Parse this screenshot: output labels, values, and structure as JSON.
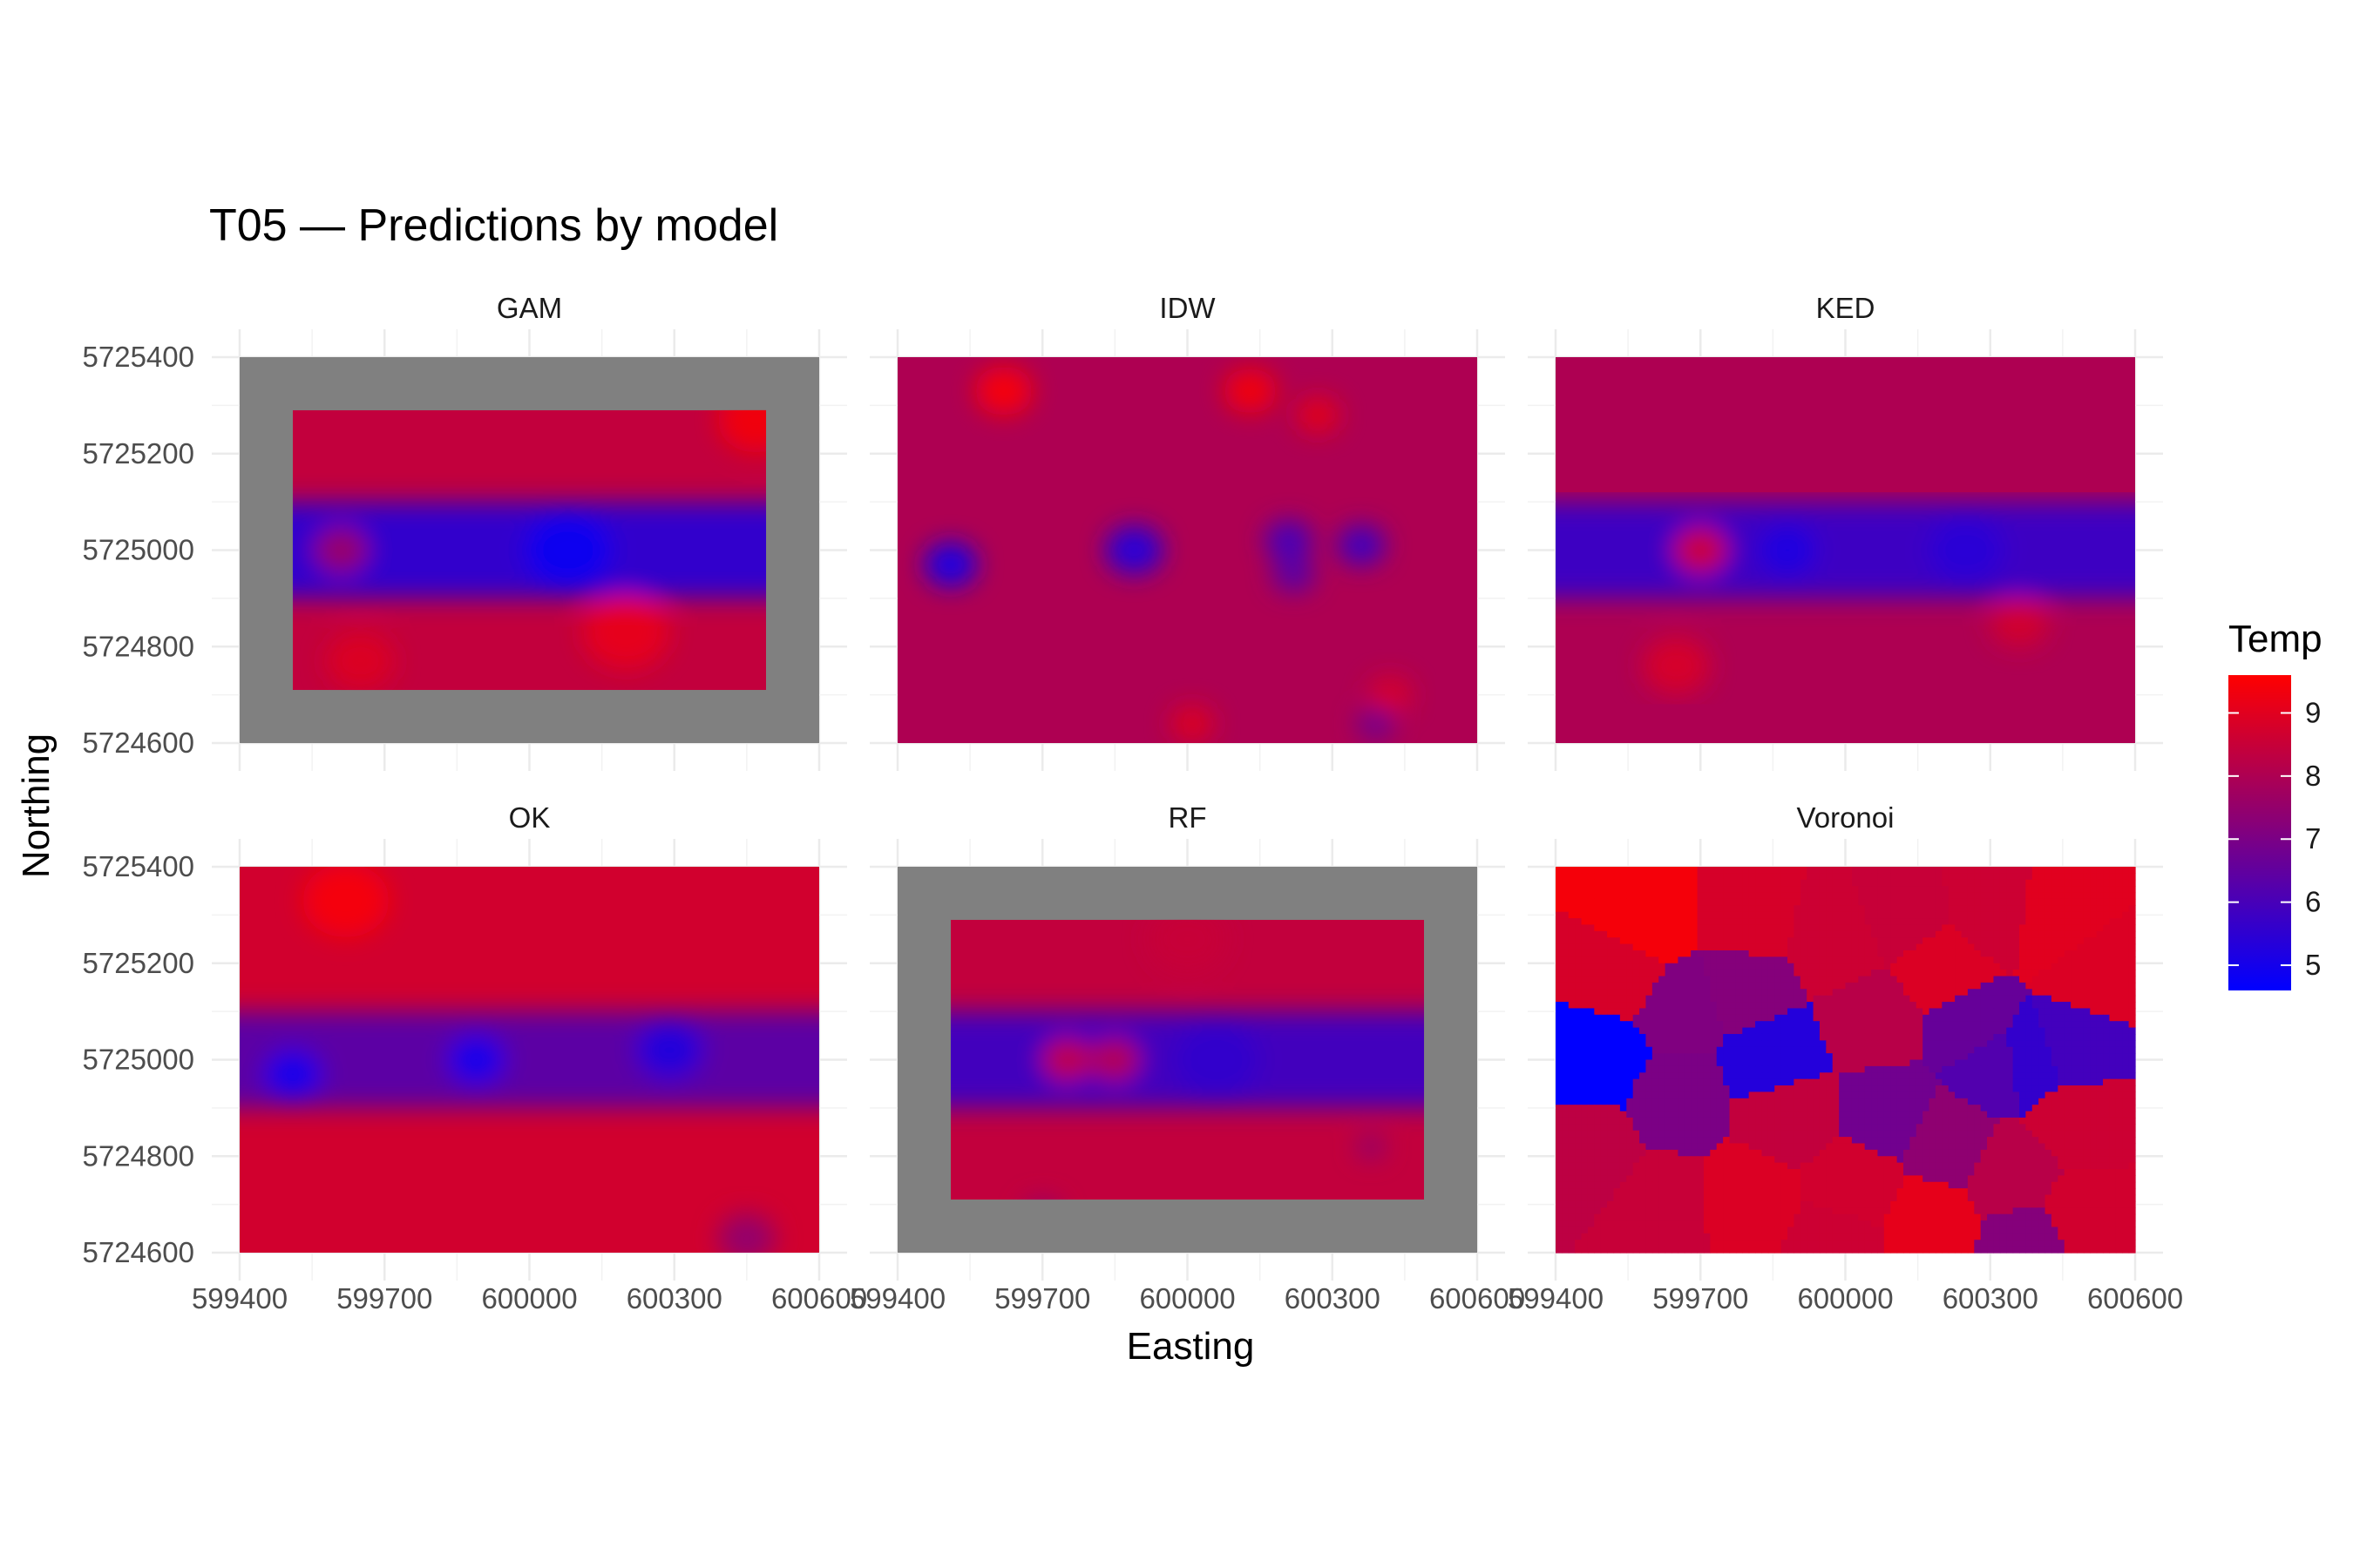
{
  "chart_data": {
    "type": "heatmap",
    "title": "T05 — Predictions by model",
    "xlabel": "Easting",
    "ylabel": "Northing",
    "xlim": [
      599400,
      600600
    ],
    "ylim": [
      5724600,
      5725400
    ],
    "x_ticks": [
      "599400",
      "599700",
      "600000",
      "600300",
      "600600"
    ],
    "y_ticks": [
      "5724600",
      "5724800",
      "5725000",
      "5725200",
      "5725400"
    ],
    "x_tick_values": [
      599400,
      599700,
      600000,
      600300,
      600600
    ],
    "y_tick_values": [
      5724600,
      5724800,
      5725000,
      5725200,
      5725400
    ],
    "legend": {
      "title": "Temp",
      "placement": "right",
      "ticks": [
        "5",
        "6",
        "7",
        "8",
        "9"
      ],
      "tick_values": [
        5,
        6,
        7,
        8,
        9
      ],
      "range": [
        4.6,
        9.6
      ],
      "low_color": "#0000ff",
      "mid_color": "#800080",
      "high_color": "#ff0000"
    },
    "na_color": "#808080",
    "panels": [
      {
        "name": "GAM",
        "extent": [
          599510,
          600490,
          5724710,
          5725290
        ],
        "base": 8.4,
        "band": {
          "y": 5725000,
          "half_width": 100,
          "value": 5.6
        },
        "blobs": [
          [
            599610,
            5725000,
            55,
            7.6
          ],
          [
            600080,
            5725000,
            90,
            4.9
          ],
          [
            600200,
            5724830,
            90,
            9.1
          ],
          [
            599650,
            5724770,
            70,
            8.9
          ],
          [
            600470,
            5725270,
            80,
            9.3
          ]
        ]
      },
      {
        "name": "IDW",
        "extent": [
          599400,
          600600,
          5724600,
          5725400
        ],
        "base": 8.0,
        "blobs": [
          [
            599510,
            5724970,
            55,
            5.2
          ],
          [
            599890,
            5725000,
            60,
            5.4
          ],
          [
            600360,
            5725010,
            50,
            5.9
          ],
          [
            600210,
            5725020,
            50,
            6.0
          ],
          [
            600220,
            5724950,
            45,
            6.4
          ],
          [
            599620,
            5725330,
            60,
            9.4
          ],
          [
            600130,
            5725330,
            55,
            9.3
          ],
          [
            600270,
            5725280,
            45,
            9.0
          ],
          [
            600010,
            5724640,
            45,
            8.9
          ],
          [
            600420,
            5724700,
            45,
            8.8
          ],
          [
            600390,
            5724640,
            40,
            6.8
          ]
        ]
      },
      {
        "name": "KED",
        "extent": [
          599400,
          600600,
          5724600,
          5725400
        ],
        "base": 8.0,
        "inner": [
          599510,
          600490,
          5724710,
          5725290
        ],
        "band": {
          "y": 5725000,
          "half_width": 100,
          "value": 5.8
        },
        "blobs": [
          [
            599700,
            5725000,
            55,
            8.6
          ],
          [
            599880,
            5725000,
            60,
            5.2
          ],
          [
            600250,
            5725000,
            80,
            5.4
          ],
          [
            599650,
            5724760,
            70,
            8.8
          ],
          [
            600360,
            5724850,
            60,
            8.7
          ]
        ]
      },
      {
        "name": "OK",
        "extent": [
          599400,
          600600,
          5724600,
          5725400
        ],
        "base": 8.7,
        "band": {
          "y": 5725000,
          "half_width": 100,
          "value": 6.4
        },
        "blobs": [
          [
            599510,
            5724970,
            60,
            5.0
          ],
          [
            599890,
            5725000,
            60,
            5.0
          ],
          [
            600290,
            5725020,
            70,
            5.3
          ],
          [
            599620,
            5725330,
            90,
            9.4
          ],
          [
            600450,
            5724630,
            60,
            7.5
          ]
        ]
      },
      {
        "name": "RF",
        "extent": [
          599510,
          600490,
          5724710,
          5725290
        ],
        "base": 8.4,
        "band": {
          "y": 5725000,
          "half_width": 100,
          "value": 5.9
        },
        "blobs": [
          [
            599750,
            5725000,
            50,
            8.4
          ],
          [
            599850,
            5725000,
            50,
            8.2
          ],
          [
            600060,
            5725000,
            90,
            5.6
          ],
          [
            600000,
            5725250,
            80,
            8.5
          ],
          [
            599700,
            5724680,
            40,
            7.6
          ],
          [
            600380,
            5724820,
            30,
            7.4
          ]
        ]
      },
      {
        "name": "Voronoi",
        "extent": [
          599400,
          600600,
          5724600,
          5725400
        ],
        "voronoi": true,
        "sites": [
          [
            599490,
            5725000,
            4.6
          ],
          [
            599590,
            5725280,
            9.4
          ],
          [
            599660,
            5725110,
            7.1
          ],
          [
            599800,
            5725290,
            8.8
          ],
          [
            599980,
            5725250,
            8.6
          ],
          [
            600120,
            5725300,
            8.5
          ],
          [
            600300,
            5725310,
            8.6
          ],
          [
            600520,
            5725180,
            8.9
          ],
          [
            599850,
            5725000,
            5.3
          ],
          [
            599790,
            5725150,
            7.2
          ],
          [
            600060,
            5725080,
            8.2
          ],
          [
            600260,
            5725070,
            6.6
          ],
          [
            600310,
            5724990,
            6.2
          ],
          [
            600380,
            5725000,
            5.6
          ],
          [
            600470,
            5725030,
            5.9
          ],
          [
            599880,
            5724890,
            8.4
          ],
          [
            600090,
            5724890,
            6.8
          ],
          [
            599650,
            5724920,
            7.0
          ],
          [
            599470,
            5724810,
            8.3
          ],
          [
            599620,
            5724700,
            8.5
          ],
          [
            599800,
            5724710,
            8.9
          ],
          [
            600020,
            5724740,
            8.7
          ],
          [
            600210,
            5724830,
            7.4
          ],
          [
            600350,
            5724760,
            8.2
          ],
          [
            600480,
            5724870,
            8.6
          ],
          [
            599980,
            5724620,
            8.6
          ],
          [
            600170,
            5724660,
            9.1
          ],
          [
            600380,
            5724620,
            7.2
          ],
          [
            600490,
            5724680,
            8.7
          ],
          [
            599540,
            5725180,
            8.8
          ],
          [
            600200,
            5725190,
            8.9
          ],
          [
            600440,
            5725290,
            9.0
          ]
        ]
      }
    ]
  }
}
